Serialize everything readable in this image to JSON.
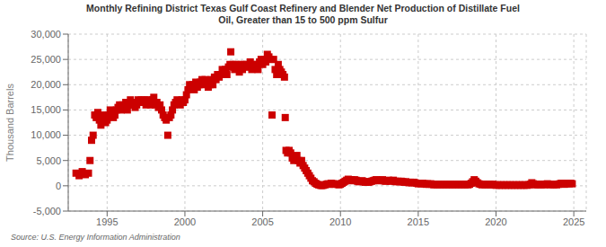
{
  "chart_data": {
    "type": "scatter",
    "title": "Monthly Refining District Texas Gulf Coast Refinery and Blender Net Production of Distillate Fuel\nOil, Greater than 15 to 500 ppm Sulfur",
    "ylabel": "Thousand Barrels",
    "annotations": [
      "Source: U.S. Energy Information Administration"
    ],
    "color": "#CC0000",
    "marker": "square",
    "grid": true,
    "xlim": [
      1992.5,
      2025.8
    ],
    "xticks": [
      1995,
      2000,
      2005,
      2010,
      2015,
      2020,
      2025
    ],
    "ylim": [
      -5000,
      30000
    ],
    "yticks": [
      {
        "value": -5000,
        "label": "-5,000"
      },
      0,
      {
        "value": 5000,
        "label": "5,000"
      },
      {
        "value": 10000,
        "label": "10,000"
      },
      {
        "value": 15000,
        "label": "15,000"
      },
      {
        "value": 20000,
        "label": "20,000"
      },
      {
        "value": 25000,
        "label": "25,000"
      },
      {
        "value": 30000,
        "label": "30,000"
      }
    ],
    "x": [
      1993.0,
      1993.2,
      1993.4,
      1993.6,
      1993.8,
      1993.9,
      1994.0,
      1994.1,
      1994.2,
      1994.3,
      1994.4,
      1994.5,
      1994.6,
      1994.7,
      1994.8,
      1994.9,
      1995.0,
      1995.1,
      1995.2,
      1995.3,
      1995.4,
      1995.5,
      1995.6,
      1995.7,
      1995.8,
      1995.9,
      1996.0,
      1996.1,
      1996.2,
      1996.3,
      1996.4,
      1996.5,
      1996.6,
      1996.7,
      1996.8,
      1996.9,
      1997.0,
      1997.1,
      1997.2,
      1997.3,
      1997.4,
      1997.5,
      1997.6,
      1997.7,
      1997.8,
      1997.9,
      1998.0,
      1998.1,
      1998.2,
      1998.3,
      1998.4,
      1998.5,
      1998.6,
      1998.7,
      1998.8,
      1998.9,
      1999.0,
      1999.1,
      1999.2,
      1999.3,
      1999.4,
      1999.5,
      1999.6,
      1999.7,
      1999.8,
      1999.9,
      2000.0,
      2000.1,
      2000.2,
      2000.3,
      2000.4,
      2000.5,
      2000.6,
      2000.7,
      2000.8,
      2000.9,
      2001.0,
      2001.1,
      2001.2,
      2001.3,
      2001.4,
      2001.5,
      2001.6,
      2001.7,
      2001.8,
      2001.9,
      2002.0,
      2002.1,
      2002.2,
      2002.3,
      2002.4,
      2002.5,
      2002.6,
      2002.7,
      2002.8,
      2002.9,
      2002.95,
      2003.0,
      2003.1,
      2003.2,
      2003.3,
      2003.4,
      2003.5,
      2003.6,
      2003.7,
      2003.8,
      2003.9,
      2004.0,
      2004.1,
      2004.2,
      2004.3,
      2004.4,
      2004.5,
      2004.6,
      2004.7,
      2004.8,
      2004.9,
      2005.0,
      2005.1,
      2005.2,
      2005.3,
      2005.4,
      2005.5,
      2005.6,
      2005.7,
      2005.8,
      2005.9,
      2006.0,
      2006.1,
      2006.2,
      2006.3,
      2006.4,
      2006.45,
      2006.5,
      2006.6,
      2006.7,
      2006.8,
      2006.9,
      2007.0,
      2007.1,
      2007.2,
      2007.3,
      2007.4,
      2007.5,
      2007.6,
      2007.7,
      2007.8,
      2007.9,
      2008.0,
      2008.1,
      2008.2,
      2008.3,
      2008.4,
      2008.5,
      2008.6,
      2008.7,
      2008.8,
      2008.9,
      2009.0,
      2009.1,
      2009.2,
      2009.3,
      2009.4,
      2009.5,
      2009.6,
      2009.7,
      2009.8,
      2009.9,
      2010.0,
      2010.1,
      2010.2,
      2010.3,
      2010.4,
      2010.5,
      2010.6,
      2010.7,
      2010.8,
      2010.9,
      2011.0,
      2011.1,
      2011.2,
      2011.3,
      2011.4,
      2011.5,
      2011.6,
      2011.7,
      2011.8,
      2011.9,
      2012.0,
      2012.1,
      2012.2,
      2012.3,
      2012.4,
      2012.5,
      2012.6,
      2012.7,
      2012.8,
      2012.9,
      2013.0,
      2013.1,
      2013.2,
      2013.3,
      2013.4,
      2013.5,
      2013.6,
      2013.7,
      2013.8,
      2013.9,
      2014.0,
      2014.1,
      2014.2,
      2014.3,
      2014.4,
      2014.5,
      2014.6,
      2014.7,
      2014.8,
      2014.9,
      2015.0,
      2015.1,
      2015.2,
      2015.3,
      2015.4,
      2015.5,
      2015.6,
      2015.7,
      2015.8,
      2015.9,
      2016.0,
      2016.1,
      2016.2,
      2016.3,
      2016.4,
      2016.5,
      2016.6,
      2016.7,
      2016.8,
      2016.9,
      2017.0,
      2017.1,
      2017.2,
      2017.3,
      2017.4,
      2017.5,
      2017.6,
      2017.7,
      2017.8,
      2017.9,
      2018.0,
      2018.1,
      2018.2,
      2018.3,
      2018.4,
      2018.5,
      2018.6,
      2018.7,
      2018.8,
      2018.9,
      2019.0,
      2019.1,
      2019.2,
      2019.3,
      2019.4,
      2019.5,
      2019.6,
      2019.7,
      2019.8,
      2019.9,
      2020.0,
      2020.1,
      2020.2,
      2020.3,
      2020.4,
      2020.5,
      2020.6,
      2020.7,
      2020.8,
      2020.9,
      2021.0,
      2021.1,
      2021.2,
      2021.3,
      2021.4,
      2021.5,
      2021.6,
      2021.7,
      2021.8,
      2021.9,
      2022.0,
      2022.1,
      2022.2,
      2022.3,
      2022.4,
      2022.5,
      2022.6,
      2022.7,
      2022.8,
      2022.9,
      2023.0,
      2023.1,
      2023.2,
      2023.3,
      2023.4,
      2023.5,
      2023.6,
      2023.7,
      2023.8,
      2023.9,
      2024.0,
      2024.1,
      2024.2,
      2024.3,
      2024.4,
      2024.5,
      2024.6,
      2024.7,
      2024.8,
      2024.9
    ],
    "values": [
      2500,
      2000,
      2800,
      2200,
      2500,
      5000,
      9000,
      10000,
      14000,
      13500,
      14500,
      13000,
      12000,
      13500,
      14000,
      12500,
      13000,
      14000,
      15000,
      14500,
      13500,
      14000,
      15000,
      15500,
      16000,
      15000,
      16000,
      15500,
      16500,
      15000,
      16000,
      17000,
      16500,
      16000,
      15500,
      16000,
      17000,
      16500,
      17000,
      16500,
      17000,
      16000,
      17000,
      16500,
      16000,
      17000,
      17500,
      16000,
      16500,
      15500,
      16000,
      15000,
      14000,
      13500,
      13000,
      10000,
      13500,
      14000,
      15000,
      16000,
      16500,
      17000,
      16500,
      16000,
      17000,
      16500,
      17000,
      18000,
      19000,
      20000,
      19500,
      20000,
      19000,
      20500,
      19500,
      20000,
      20500,
      21000,
      20000,
      21000,
      20500,
      19500,
      20000,
      21000,
      20000,
      21500,
      21000,
      22000,
      21500,
      22000,
      23000,
      22500,
      23000,
      22000,
      23500,
      24000,
      26500,
      23500,
      24000,
      23000,
      24000,
      23500,
      22500,
      24000,
      23000,
      24000,
      23500,
      24000,
      23500,
      24500,
      23000,
      24000,
      23500,
      24000,
      23000,
      24500,
      25000,
      24000,
      25000,
      24500,
      26000,
      25500,
      25000,
      14000,
      25000,
      23000,
      22000,
      24000,
      23000,
      22500,
      22000,
      21500,
      13500,
      7000,
      6500,
      7000,
      6500,
      5500,
      5000,
      5500,
      6000,
      5000,
      4500,
      5000,
      4000,
      3500,
      3000,
      2500,
      2000,
      1500,
      1000,
      800,
      500,
      300,
      200,
      100,
      50,
      100,
      200,
      300,
      400,
      300,
      500,
      400,
      300,
      400,
      300,
      200,
      300,
      500,
      700,
      900,
      1100,
      1300,
      1100,
      1200,
      1000,
      1200,
      1100,
      900,
      800,
      900,
      1000,
      800,
      700,
      800,
      700,
      800,
      900,
      1000,
      1100,
      1200,
      1100,
      1000,
      1100,
      1200,
      1000,
      900,
      1000,
      1100,
      900,
      1000,
      1100,
      900,
      800,
      900,
      800,
      900,
      800,
      700,
      800,
      700,
      600,
      700,
      600,
      700,
      600,
      500,
      400,
      500,
      400,
      500,
      400,
      300,
      400,
      300,
      400,
      300,
      200,
      300,
      200,
      300,
      200,
      300,
      200,
      300,
      200,
      300,
      200,
      300,
      200,
      300,
      200,
      300,
      200,
      300,
      200,
      300,
      200,
      300,
      200,
      300,
      500,
      800,
      1200,
      900,
      600,
      400,
      300,
      200,
      300,
      200,
      300,
      200,
      300,
      200,
      300,
      200,
      100,
      200,
      100,
      200,
      100,
      200,
      100,
      200,
      100,
      200,
      100,
      200,
      100,
      200,
      100,
      200,
      100,
      200,
      100,
      200,
      100,
      200,
      300,
      600,
      400,
      200,
      300,
      200,
      300,
      200,
      300,
      200,
      300,
      400,
      300,
      200,
      300,
      200,
      300,
      200,
      300,
      400,
      500,
      400,
      300,
      400,
      500,
      400,
      500,
      400
    ]
  }
}
